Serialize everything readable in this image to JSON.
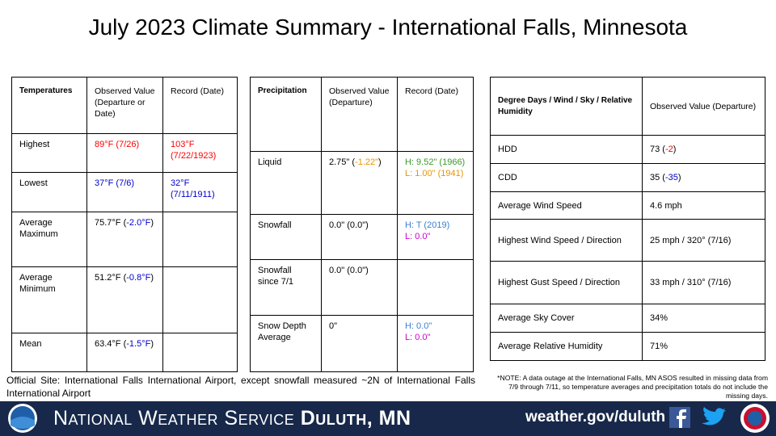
{
  "header": {
    "title": "July 2023 Climate Summary - International Falls, Minnesota"
  },
  "temperatures": {
    "header": [
      "Temperatures",
      "Observed Value (Departure or Date)",
      "Record (Date)"
    ],
    "rows": [
      [
        [
          "Highest"
        ],
        [
          [
            {
              "text": "89°F (7/26)",
              "color": "#ff0000"
            }
          ]
        ],
        [
          [
            {
              "text": "103°F (7/22/1923)",
              "color": "#ff0000"
            }
          ]
        ]
      ],
      [
        [
          "Lowest"
        ],
        [
          [
            {
              "text": "37°F (7/6)",
              "color": "#0000cc"
            }
          ]
        ],
        [
          [
            {
              "text": "32°F (7/11/1911)",
              "color": "#0000cc"
            }
          ]
        ]
      ],
      [
        [
          "Average Maximum"
        ],
        [
          [
            "75.7°F (",
            {
              "text": "-2.0°F",
              "color": "#0000cc"
            },
            ")"
          ]
        ],
        []
      ],
      [
        [
          "Average Minimum"
        ],
        [
          [
            "51.2°F (",
            {
              "text": "-0.8°F",
              "color": "#0000cc"
            },
            ")"
          ]
        ],
        []
      ],
      [
        [
          "Mean"
        ],
        [
          [
            "63.4°F (",
            {
              "text": "-1.5°F",
              "color": "#0000cc"
            },
            ")"
          ]
        ],
        []
      ]
    ]
  },
  "precipitation": {
    "header": [
      "Precipitation",
      "Observed Value (Departure)",
      "Record (Date)"
    ],
    "rows": [
      [
        [
          "Liquid"
        ],
        [
          [
            "2.75\" (",
            {
              "text": "-1.22\"",
              "color": "#e69500"
            },
            ")"
          ]
        ],
        [
          [
            {
              "text": "H: 9.52\" (1966)",
              "color": "#3a9a2a"
            }
          ],
          [
            {
              "text": "L: 1.00\" (1941)",
              "color": "#e69500"
            }
          ]
        ]
      ],
      [
        [
          "Snowfall"
        ],
        [
          "0.0\" (0.0\")"
        ],
        [
          [
            {
              "text": "H: T (2019)",
              "color": "#3a7fd0"
            }
          ],
          [
            {
              "text": "L: 0.0\"",
              "color": "#cc00cc"
            }
          ]
        ]
      ],
      [
        [
          "Snowfall since 7/1"
        ],
        [
          "0.0\" (0.0\")"
        ],
        []
      ],
      [
        [
          "Snow Depth Average"
        ],
        [
          "0\""
        ],
        [
          [
            {
              "text": "H: 0.0\"",
              "color": "#3a7fd0"
            }
          ],
          [
            {
              "text": "L: 0.0\"",
              "color": "#cc00cc"
            }
          ]
        ]
      ]
    ]
  },
  "degree_days": {
    "header": [
      "Degree Days / Wind / Sky / Relative Humidity",
      "Observed Value (Departure)"
    ],
    "rows": [
      [
        [
          "HDD"
        ],
        [
          [
            "73 (",
            {
              "text": "-2",
              "color": "#ff0000"
            },
            ")"
          ]
        ]
      ],
      [
        [
          "CDD"
        ],
        [
          [
            "35 (",
            {
              "text": "-35",
              "color": "#0000cc"
            },
            ")"
          ]
        ]
      ],
      [
        [
          "Average Wind Speed"
        ],
        [
          "4.6 mph"
        ]
      ],
      [
        [
          "Highest Wind Speed / Direction"
        ],
        [
          "25 mph / 320° (7/16)"
        ]
      ],
      [
        [
          "Highest Gust Speed / Direction"
        ],
        [
          "33 mph / 310° (7/16)"
        ]
      ],
      [
        [
          "Average Sky Cover"
        ],
        [
          "34%"
        ]
      ],
      [
        [
          "Average Relative Humidity"
        ],
        [
          "71%"
        ]
      ]
    ]
  },
  "notes": {
    "site": "Official Site: International Falls International Airport, except snowfall measured ~2N of International Falls International Airport",
    "outage": "*NOTE: A data outage at the International Falls, MN ASOS resulted in missing data from 7/9 through 7/11, so temperature averages and precipitation totals do not include the missing days."
  },
  "footer": {
    "agency": "National Weather Service",
    "office": "Duluth, MN",
    "url": "weather.gov/duluth"
  }
}
